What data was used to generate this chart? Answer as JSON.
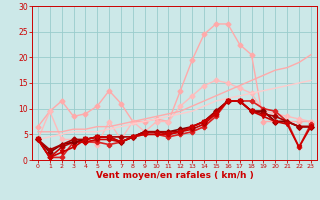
{
  "bg_color": "#cce8e8",
  "grid_color": "#99cccc",
  "xlabel": "Vent moyen/en rafales ( km/h )",
  "xlabel_color": "#cc0000",
  "tick_color": "#cc0000",
  "xlim": [
    -0.5,
    23.5
  ],
  "ylim": [
    0,
    30
  ],
  "yticks": [
    0,
    5,
    10,
    15,
    20,
    25,
    30
  ],
  "xticks": [
    0,
    1,
    2,
    3,
    4,
    5,
    6,
    7,
    8,
    9,
    10,
    11,
    12,
    13,
    14,
    15,
    16,
    17,
    18,
    19,
    20,
    21,
    22,
    23
  ],
  "lines": [
    {
      "x": [
        0,
        1,
        2,
        3,
        4,
        5,
        6,
        7,
        8,
        9,
        10,
        11,
        12,
        13,
        14,
        15,
        16,
        17,
        18,
        19,
        20,
        21,
        22,
        23
      ],
      "y": [
        6.5,
        9.5,
        11.5,
        8.5,
        9.0,
        10.5,
        13.5,
        11.0,
        7.5,
        7.5,
        8.0,
        7.5,
        13.5,
        19.5,
        24.5,
        26.5,
        26.5,
        22.5,
        20.5,
        7.5,
        7.5,
        7.5,
        7.5,
        7.5
      ],
      "color": "#ffaaaa",
      "marker": "D",
      "markersize": 2.5,
      "linewidth": 1.0
    },
    {
      "x": [
        0,
        1,
        2,
        3,
        4,
        5,
        6,
        7,
        8,
        9,
        10,
        11,
        12,
        13,
        14,
        15,
        16,
        17,
        18,
        19,
        20,
        21,
        22,
        23
      ],
      "y": [
        4.0,
        9.5,
        4.0,
        4.0,
        4.0,
        3.0,
        7.5,
        4.0,
        7.5,
        5.5,
        7.5,
        7.5,
        10.5,
        12.5,
        14.5,
        15.5,
        15.0,
        14.0,
        13.0,
        9.5,
        9.0,
        8.5,
        8.0,
        7.5
      ],
      "color": "#ffbbbb",
      "marker": "D",
      "markersize": 2.5,
      "linewidth": 1.0
    },
    {
      "x": [
        0,
        1,
        2,
        3,
        4,
        5,
        6,
        7,
        8,
        9,
        10,
        11,
        12,
        13,
        14,
        15,
        16,
        17,
        18,
        19,
        20,
        21,
        22,
        23
      ],
      "y": [
        5.5,
        5.5,
        5.5,
        6.0,
        6.0,
        6.5,
        6.5,
        7.0,
        7.5,
        8.0,
        8.5,
        9.0,
        9.5,
        10.5,
        11.5,
        12.5,
        13.5,
        14.5,
        15.5,
        16.5,
        17.5,
        18.0,
        19.0,
        20.5
      ],
      "color": "#ffaaaa",
      "marker": null,
      "markersize": 0,
      "linewidth": 1.0
    },
    {
      "x": [
        0,
        1,
        2,
        3,
        4,
        5,
        6,
        7,
        8,
        9,
        10,
        11,
        12,
        13,
        14,
        15,
        16,
        17,
        18,
        19,
        20,
        21,
        22,
        23
      ],
      "y": [
        4.0,
        4.5,
        5.0,
        5.5,
        5.5,
        5.5,
        6.0,
        6.5,
        7.0,
        7.5,
        8.0,
        8.5,
        9.0,
        9.5,
        10.5,
        11.5,
        12.0,
        12.5,
        13.0,
        13.5,
        14.0,
        14.5,
        15.0,
        15.5
      ],
      "color": "#ffcccc",
      "marker": null,
      "markersize": 0,
      "linewidth": 1.0
    },
    {
      "x": [
        0,
        1,
        2,
        3,
        4,
        5,
        6,
        7,
        8,
        9,
        10,
        11,
        12,
        13,
        14,
        15,
        16,
        17,
        18,
        19,
        20,
        21,
        22,
        23
      ],
      "y": [
        4.0,
        0.5,
        0.5,
        3.5,
        3.5,
        3.5,
        3.0,
        3.5,
        4.5,
        5.0,
        5.0,
        4.5,
        5.0,
        5.5,
        6.5,
        8.5,
        11.5,
        11.5,
        11.5,
        10.0,
        9.5,
        7.5,
        2.5,
        7.0
      ],
      "color": "#dd2222",
      "marker": "P",
      "markersize": 3,
      "linewidth": 1.2
    },
    {
      "x": [
        0,
        1,
        2,
        3,
        4,
        5,
        6,
        7,
        8,
        9,
        10,
        11,
        12,
        13,
        14,
        15,
        16,
        17,
        18,
        19,
        20,
        21,
        22,
        23
      ],
      "y": [
        4.0,
        0.5,
        2.5,
        3.5,
        3.5,
        4.0,
        4.0,
        3.5,
        4.5,
        5.5,
        5.5,
        5.0,
        5.5,
        6.0,
        7.0,
        9.0,
        11.5,
        11.5,
        9.5,
        9.5,
        7.5,
        7.5,
        6.5,
        6.5
      ],
      "color": "#cc0000",
      "marker": "D",
      "markersize": 2.5,
      "linewidth": 1.2
    },
    {
      "x": [
        0,
        1,
        2,
        3,
        4,
        5,
        6,
        7,
        8,
        9,
        10,
        11,
        12,
        13,
        14,
        15,
        16,
        17,
        18,
        19,
        20,
        21,
        22,
        23
      ],
      "y": [
        4.0,
        1.5,
        3.0,
        3.5,
        4.0,
        4.5,
        4.5,
        3.5,
        4.5,
        5.5,
        5.5,
        5.5,
        6.0,
        6.5,
        7.5,
        9.5,
        11.5,
        11.5,
        9.5,
        9.5,
        7.5,
        7.5,
        6.5,
        6.5
      ],
      "color": "#880000",
      "marker": "D",
      "markersize": 2.5,
      "linewidth": 1.2
    },
    {
      "x": [
        0,
        1,
        2,
        3,
        4,
        5,
        6,
        7,
        8,
        9,
        10,
        11,
        12,
        13,
        14,
        15,
        16,
        17,
        18,
        19,
        20,
        21,
        22,
        23
      ],
      "y": [
        4.0,
        2.0,
        3.0,
        4.0,
        4.0,
        4.5,
        4.5,
        4.5,
        4.5,
        5.5,
        5.5,
        5.5,
        5.5,
        6.5,
        7.5,
        9.5,
        11.5,
        11.5,
        9.5,
        9.0,
        8.5,
        7.5,
        6.5,
        6.5
      ],
      "color": "#aa0000",
      "marker": "D",
      "markersize": 2.5,
      "linewidth": 1.2
    },
    {
      "x": [
        0,
        1,
        2,
        3,
        4,
        5,
        6,
        7,
        8,
        9,
        10,
        11,
        12,
        13,
        14,
        15,
        16,
        17,
        18,
        19,
        20,
        21,
        22,
        23
      ],
      "y": [
        4.0,
        0.5,
        1.5,
        2.5,
        4.0,
        4.5,
        4.5,
        3.5,
        4.5,
        5.0,
        5.0,
        5.0,
        5.5,
        6.5,
        7.5,
        9.0,
        11.5,
        11.5,
        9.5,
        8.5,
        7.5,
        7.0,
        2.5,
        6.5
      ],
      "color": "#cc0000",
      "marker": "v",
      "markersize": 3,
      "linewidth": 1.2
    }
  ]
}
